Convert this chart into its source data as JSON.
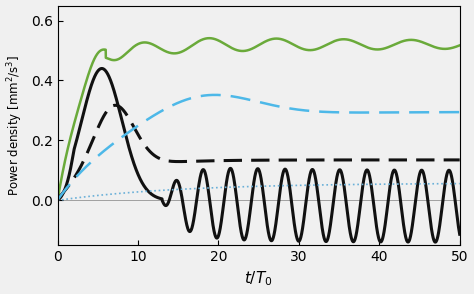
{
  "xlim": [
    0,
    50
  ],
  "ylim": [
    -0.15,
    0.65
  ],
  "yticks": [
    0.0,
    0.2,
    0.4,
    0.6
  ],
  "xticks": [
    0,
    10,
    20,
    30,
    40,
    50
  ],
  "xlabel": "$t/T_0$",
  "ylabel": "Power density $[\\mathrm{mm}^2/\\mathrm{s}^3]$",
  "bg_color": "#f0f0f0",
  "green_color": "#6aaa3a",
  "blue_dashed_color": "#4db8e8",
  "blue_dotted_color": "#6ab0d8",
  "black_color": "#111111"
}
